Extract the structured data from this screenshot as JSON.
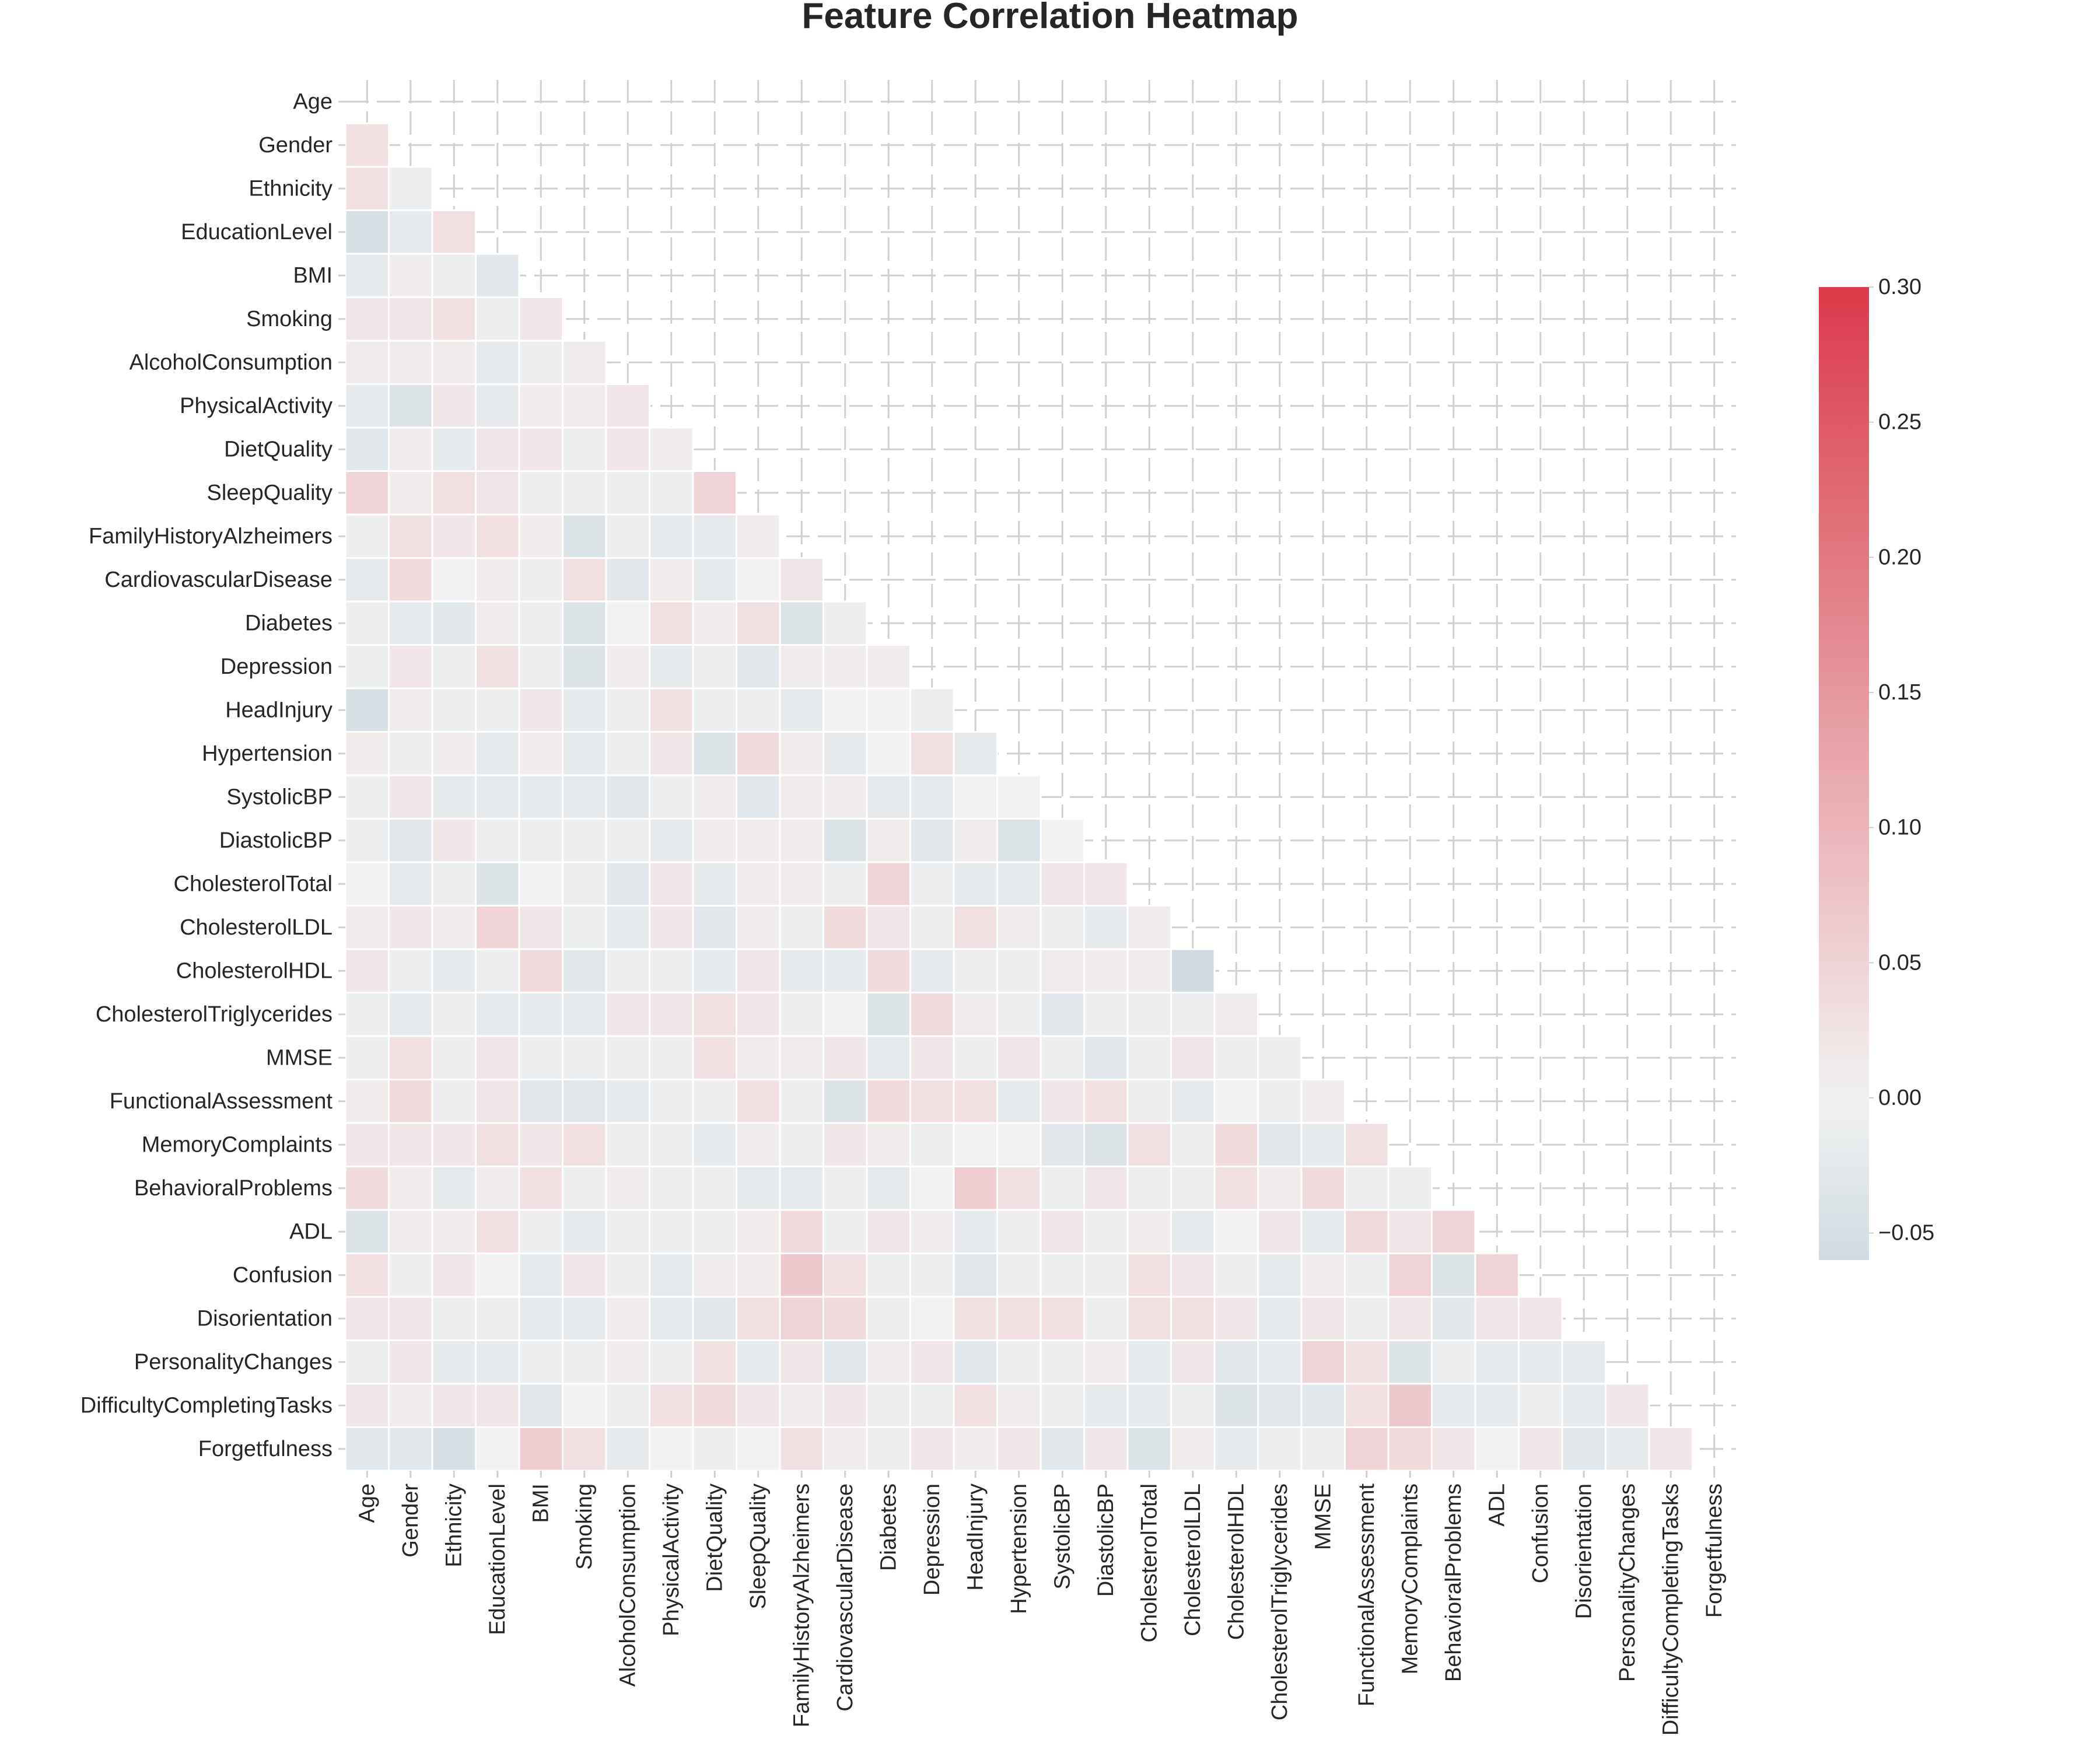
{
  "chart_data": {
    "type": "heatmap",
    "title": "Feature Correlation Heatmap",
    "xlabel": "",
    "ylabel": "",
    "mask": "upper-triangle",
    "features": [
      "Age",
      "Gender",
      "Ethnicity",
      "EducationLevel",
      "BMI",
      "Smoking",
      "AlcoholConsumption",
      "PhysicalActivity",
      "DietQuality",
      "SleepQuality",
      "FamilyHistoryAlzheimers",
      "CardiovascularDisease",
      "Diabetes",
      "Depression",
      "HeadInjury",
      "Hypertension",
      "SystolicBP",
      "DiastolicBP",
      "CholesterolTotal",
      "CholesterolLDL",
      "CholesterolHDL",
      "CholesterolTriglycerides",
      "MMSE",
      "FunctionalAssessment",
      "MemoryComplaints",
      "BehavioralProblems",
      "ADL",
      "Confusion",
      "Disorientation",
      "PersonalityChanges",
      "DifficultyCompletingTasks",
      "Forgetfulness"
    ],
    "values": [
      [],
      [
        0.03
      ],
      [
        0.03,
        -0.01
      ],
      [
        -0.05,
        -0.02,
        0.03
      ],
      [
        -0.02,
        0.01,
        -0.01,
        -0.03
      ],
      [
        0.02,
        0.02,
        0.03,
        -0.01,
        0.02
      ],
      [
        0.01,
        0.01,
        0.01,
        -0.02,
        -0.01,
        0.01
      ],
      [
        -0.02,
        -0.04,
        0.02,
        -0.02,
        0.01,
        0.01,
        0.02
      ],
      [
        -0.03,
        0.01,
        -0.02,
        0.02,
        0.02,
        -0.01,
        0.02,
        0.01
      ],
      [
        0.05,
        0.01,
        0.03,
        0.02,
        -0.01,
        -0.01,
        -0.01,
        -0.01,
        0.05
      ],
      [
        -0.01,
        0.03,
        0.02,
        0.03,
        0.01,
        -0.04,
        -0.01,
        -0.02,
        -0.02,
        0.01
      ],
      [
        -0.02,
        0.04,
        0.0,
        0.01,
        -0.01,
        0.03,
        -0.03,
        0.01,
        -0.02,
        0.0,
        0.02
      ],
      [
        -0.01,
        -0.02,
        -0.03,
        0.01,
        -0.01,
        -0.04,
        0.0,
        0.03,
        0.01,
        0.03,
        -0.04,
        -0.01
      ],
      [
        -0.01,
        0.02,
        -0.01,
        0.03,
        -0.01,
        -0.04,
        0.01,
        -0.02,
        -0.01,
        -0.03,
        0.01,
        0.01,
        0.01
      ],
      [
        -0.05,
        0.01,
        -0.01,
        -0.01,
        0.02,
        -0.02,
        -0.01,
        0.03,
        -0.01,
        -0.01,
        -0.02,
        0.0,
        0.0,
        -0.01
      ],
      [
        0.01,
        -0.01,
        0.01,
        -0.02,
        0.01,
        -0.02,
        -0.01,
        0.02,
        -0.04,
        0.04,
        0.01,
        -0.02,
        0.0,
        0.03,
        -0.02
      ],
      [
        -0.01,
        0.02,
        -0.02,
        -0.02,
        -0.02,
        -0.02,
        -0.03,
        -0.01,
        0.01,
        -0.03,
        0.01,
        0.01,
        -0.02,
        -0.02,
        0.0,
        0.0
      ],
      [
        -0.01,
        -0.03,
        0.02,
        -0.01,
        -0.01,
        -0.01,
        -0.01,
        -0.02,
        0.01,
        0.01,
        0.01,
        -0.04,
        0.01,
        -0.03,
        0.01,
        -0.04,
        0.0
      ],
      [
        0.0,
        -0.02,
        -0.01,
        -0.04,
        0.0,
        -0.01,
        -0.03,
        0.02,
        -0.02,
        0.01,
        0.01,
        -0.01,
        0.05,
        -0.01,
        -0.02,
        -0.02,
        0.02,
        0.02
      ],
      [
        0.01,
        0.02,
        0.01,
        0.05,
        0.02,
        -0.01,
        -0.02,
        0.02,
        -0.03,
        0.01,
        -0.01,
        0.04,
        0.02,
        -0.01,
        0.03,
        0.01,
        -0.01,
        -0.02,
        0.01
      ],
      [
        0.02,
        -0.01,
        -0.02,
        -0.01,
        0.04,
        -0.03,
        -0.01,
        -0.01,
        -0.02,
        0.02,
        -0.02,
        -0.02,
        0.04,
        -0.02,
        -0.01,
        -0.01,
        0.01,
        0.01,
        0.01,
        -0.06
      ],
      [
        -0.01,
        -0.02,
        -0.01,
        -0.02,
        -0.02,
        -0.02,
        0.02,
        0.02,
        0.03,
        0.02,
        -0.01,
        0.0,
        -0.04,
        0.04,
        0.01,
        -0.01,
        -0.03,
        -0.01,
        -0.01,
        -0.01,
        0.01
      ],
      [
        -0.01,
        0.03,
        -0.01,
        0.02,
        -0.01,
        -0.01,
        -0.01,
        -0.01,
        0.03,
        0.01,
        0.01,
        0.02,
        -0.02,
        0.02,
        -0.01,
        0.02,
        -0.01,
        -0.03,
        -0.01,
        0.02,
        -0.01,
        -0.01
      ],
      [
        0.01,
        0.04,
        -0.01,
        0.02,
        -0.03,
        -0.03,
        -0.02,
        -0.01,
        -0.01,
        0.03,
        -0.01,
        -0.04,
        0.04,
        0.03,
        0.03,
        -0.02,
        0.02,
        0.03,
        -0.01,
        -0.02,
        0.0,
        -0.01,
        0.01
      ],
      [
        0.02,
        0.02,
        0.02,
        0.03,
        0.02,
        0.03,
        -0.01,
        -0.01,
        -0.02,
        0.01,
        -0.01,
        0.02,
        0.01,
        -0.01,
        0.0,
        0.0,
        -0.03,
        -0.04,
        0.03,
        -0.01,
        0.04,
        -0.03,
        -0.02,
        0.03
      ],
      [
        0.04,
        0.01,
        -0.02,
        0.01,
        0.03,
        -0.01,
        0.01,
        -0.01,
        -0.01,
        -0.02,
        -0.02,
        -0.01,
        -0.02,
        0.0,
        0.06,
        0.03,
        -0.01,
        0.02,
        -0.01,
        -0.01,
        0.03,
        0.01,
        0.04,
        -0.01,
        -0.01
      ],
      [
        -0.04,
        0.01,
        0.01,
        0.03,
        -0.01,
        -0.02,
        -0.01,
        -0.01,
        -0.01,
        0.01,
        0.04,
        -0.01,
        0.02,
        0.01,
        -0.02,
        -0.01,
        0.02,
        -0.01,
        0.01,
        -0.02,
        0.0,
        0.02,
        -0.02,
        0.04,
        0.02,
        0.05
      ],
      [
        0.03,
        -0.01,
        0.02,
        0.0,
        -0.02,
        0.02,
        -0.01,
        -0.02,
        0.01,
        0.01,
        0.07,
        0.03,
        -0.01,
        -0.01,
        -0.03,
        -0.01,
        -0.01,
        -0.01,
        0.03,
        0.02,
        -0.01,
        -0.02,
        0.01,
        -0.01,
        0.05,
        -0.04,
        0.05
      ],
      [
        0.02,
        0.02,
        -0.01,
        -0.01,
        -0.02,
        -0.02,
        0.01,
        -0.02,
        -0.03,
        0.03,
        0.05,
        0.04,
        -0.01,
        0.0,
        0.03,
        0.03,
        0.03,
        -0.01,
        0.03,
        0.03,
        0.02,
        -0.02,
        0.02,
        -0.01,
        0.02,
        -0.03,
        0.02,
        0.02
      ],
      [
        -0.01,
        0.02,
        -0.02,
        -0.02,
        -0.01,
        -0.01,
        0.01,
        -0.01,
        0.03,
        -0.02,
        0.02,
        -0.03,
        0.01,
        0.02,
        -0.03,
        -0.01,
        -0.01,
        0.01,
        -0.02,
        0.02,
        -0.03,
        -0.02,
        0.05,
        0.03,
        -0.04,
        -0.01,
        -0.02,
        -0.02,
        -0.02
      ],
      [
        0.02,
        0.01,
        0.02,
        0.02,
        -0.03,
        0.0,
        -0.01,
        0.03,
        0.04,
        0.02,
        0.01,
        0.02,
        -0.01,
        -0.01,
        0.03,
        0.01,
        -0.01,
        -0.02,
        -0.02,
        -0.01,
        -0.04,
        -0.03,
        -0.03,
        0.03,
        0.07,
        -0.02,
        -0.02,
        -0.01,
        -0.02,
        0.02
      ],
      [
        -0.03,
        -0.03,
        -0.05,
        0.0,
        0.06,
        0.03,
        -0.02,
        0.0,
        -0.01,
        0.0,
        0.03,
        0.01,
        -0.01,
        0.02,
        0.01,
        0.02,
        -0.03,
        0.02,
        -0.04,
        0.01,
        -0.02,
        -0.01,
        -0.01,
        0.05,
        0.04,
        0.02,
        0.0,
        0.02,
        -0.03,
        -0.02,
        0.02
      ]
    ],
    "colorbar": {
      "vmin": -0.06,
      "vmax": 0.3,
      "ticks": [
        "0.30",
        "0.25",
        "0.20",
        "0.15",
        "0.10",
        "0.05",
        "0.00",
        "−0.05"
      ],
      "tick_values": [
        0.3,
        0.25,
        0.2,
        0.15,
        0.1,
        0.05,
        0.0,
        -0.05
      ],
      "color_low": "#cfdbe1",
      "color_mid": "#f2f2f2",
      "color_high": "#da3b4a"
    },
    "grid": true,
    "legend": "colorbar-right"
  }
}
